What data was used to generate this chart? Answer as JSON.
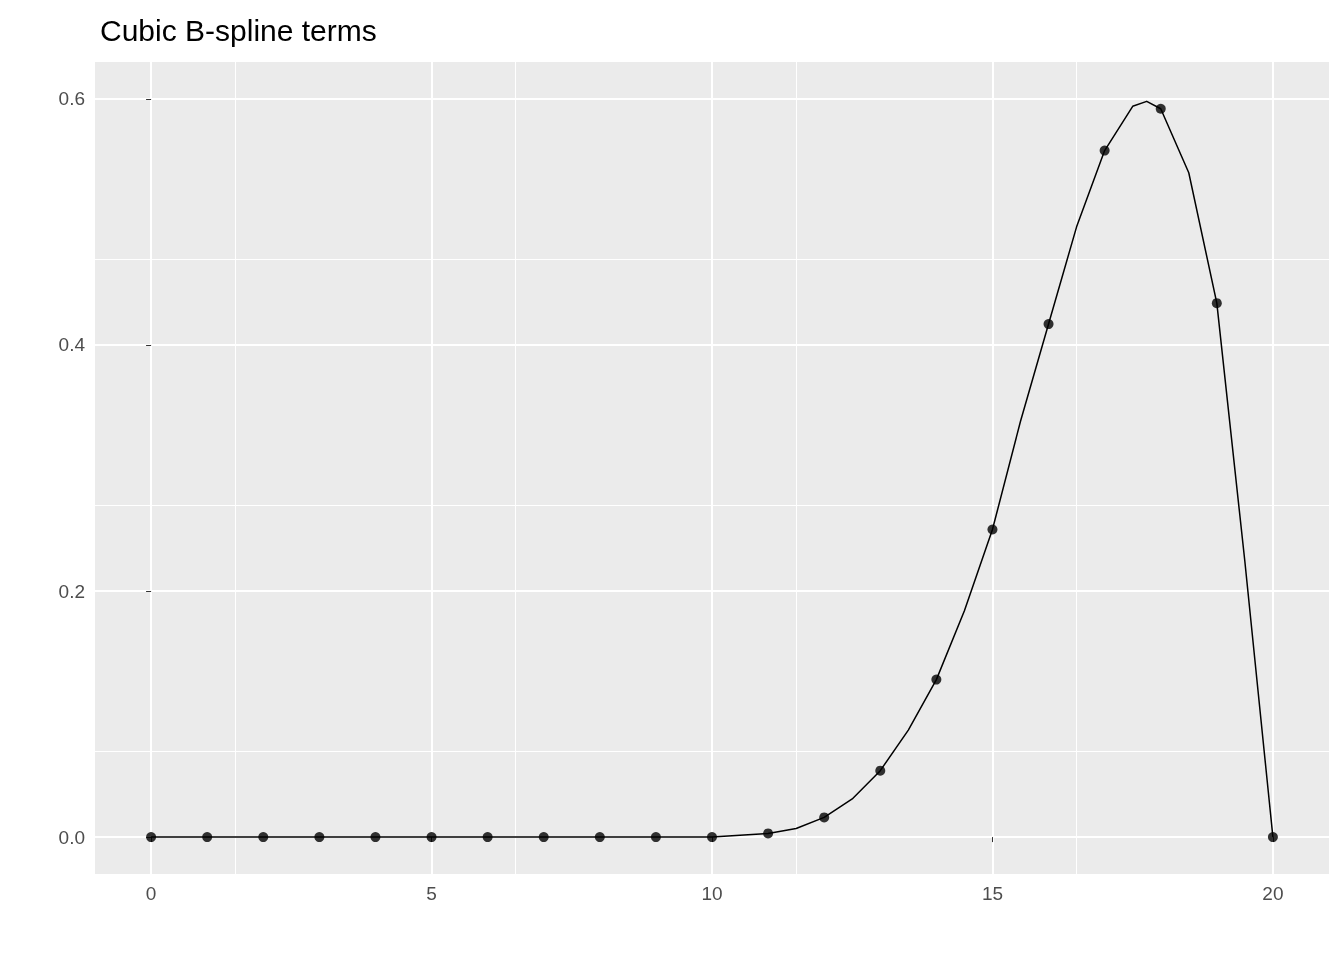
{
  "chart_data": {
    "type": "scatter",
    "title": "Cubic B-spline terms",
    "xlim": [
      -1,
      21
    ],
    "ylim": [
      -0.03,
      0.63
    ],
    "xticks": [
      0,
      5,
      10,
      15,
      20
    ],
    "yticks": [
      {
        "value": 0,
        "label": "0.0"
      },
      {
        "value": 0.2,
        "label": "0.2"
      },
      {
        "value": 0.4,
        "label": "0.4"
      },
      {
        "value": 0.6,
        "label": "0.6"
      }
    ],
    "grid": true,
    "series": [
      {
        "color": "#000000",
        "marker": "circle",
        "x": [
          0,
          1,
          2,
          3,
          4,
          5,
          6,
          7,
          8,
          9,
          10,
          11,
          12,
          13,
          14,
          15,
          16,
          17,
          18,
          19,
          20
        ],
        "values": [
          0,
          0,
          0,
          0,
          0,
          0,
          0,
          0,
          0,
          0,
          0,
          0.003,
          0.016,
          0.054,
          0.128,
          0.25,
          0.417,
          0.558,
          0.592,
          0.434,
          0
        ]
      },
      {
        "type": "line",
        "color": "#000000",
        "marker": "none",
        "line_style": "solid",
        "x": [
          0,
          10,
          11,
          11.5,
          12,
          12.5,
          13,
          13.5,
          14,
          14.5,
          15,
          15.5,
          16,
          16.5,
          17,
          17.5,
          17.75,
          18,
          18.5,
          19,
          19.5,
          20
        ],
        "values": [
          0,
          0,
          0.003,
          0.007,
          0.016,
          0.031,
          0.054,
          0.087,
          0.128,
          0.184,
          0.25,
          0.338,
          0.417,
          0.496,
          0.558,
          0.594,
          0.598,
          0.592,
          0.54,
          0.434,
          0.224,
          0
        ]
      }
    ]
  }
}
